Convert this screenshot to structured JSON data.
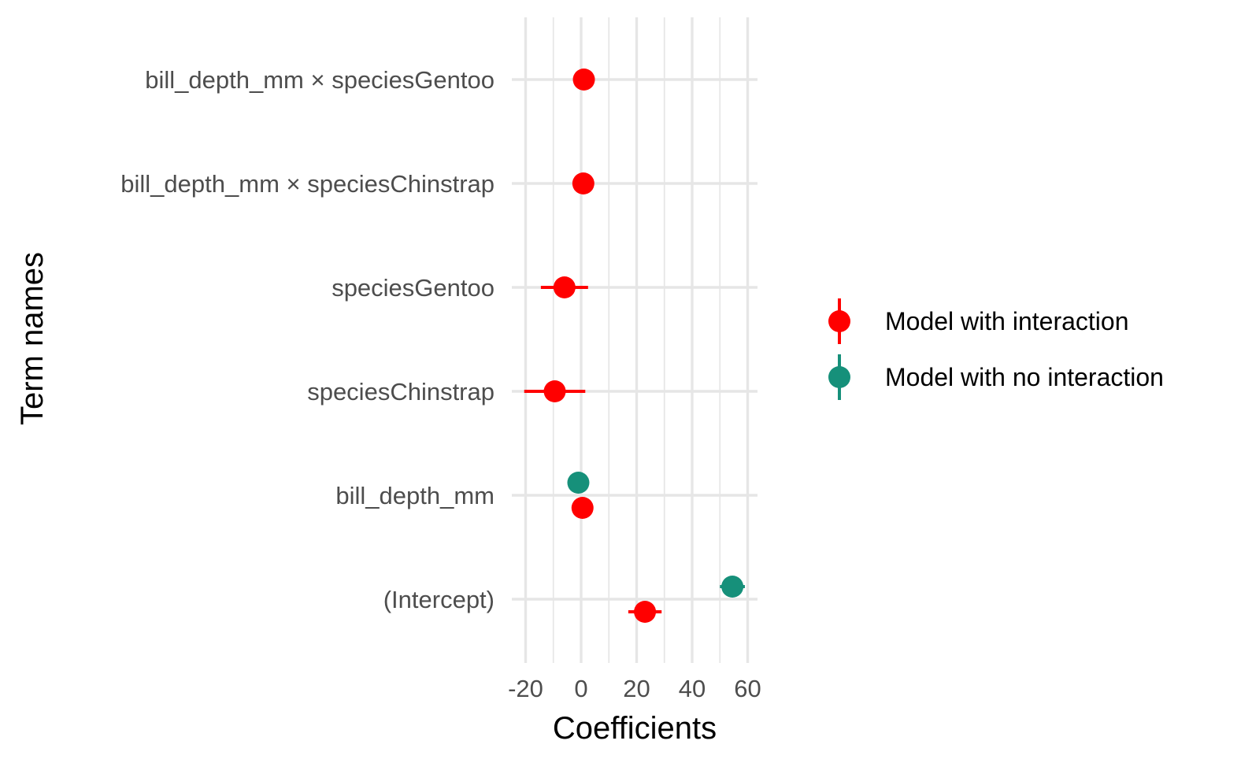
{
  "chart_data": {
    "type": "scatter",
    "subtype": "coefficient-plot",
    "title": "",
    "xlabel": "Coefficients",
    "ylabel": "Term names",
    "xlim": [
      -22,
      64
    ],
    "x_ticks": [
      -20,
      0,
      20,
      40,
      60
    ],
    "x_tick_labels": [
      "-20",
      "0",
      "20",
      "40",
      "60"
    ],
    "terms": [
      "bill_depth_mm × speciesGentoo",
      "bill_depth_mm × speciesChinstrap",
      "speciesGentoo",
      "speciesChinstrap",
      "bill_depth_mm",
      "(Intercept)"
    ],
    "grid": true,
    "legend_position": "right",
    "series": [
      {
        "name": "Model with interaction",
        "color": "#ff0000",
        "points": [
          {
            "term": "bill_depth_mm × speciesGentoo",
            "estimate": 1.0,
            "low": 1.0,
            "high": 1.0
          },
          {
            "term": "bill_depth_mm × speciesChinstrap",
            "estimate": 0.8,
            "low": 0.8,
            "high": 0.8
          },
          {
            "term": "speciesGentoo",
            "estimate": -6.0,
            "low": -14.5,
            "high": 2.5
          },
          {
            "term": "speciesChinstrap",
            "estimate": -9.5,
            "low": -20.5,
            "high": 1.5
          },
          {
            "term": "bill_depth_mm",
            "estimate": 0.5,
            "low": 0.5,
            "high": 0.5
          },
          {
            "term": "(Intercept)",
            "estimate": 23.0,
            "low": 17.0,
            "high": 29.0
          }
        ]
      },
      {
        "name": "Model with no interaction",
        "color": "#16907a",
        "points": [
          {
            "term": "bill_depth_mm",
            "estimate": -1.0,
            "low": -1.0,
            "high": -1.0
          },
          {
            "term": "(Intercept)",
            "estimate": 54.5,
            "low": 50.0,
            "high": 59.0
          }
        ]
      }
    ]
  }
}
